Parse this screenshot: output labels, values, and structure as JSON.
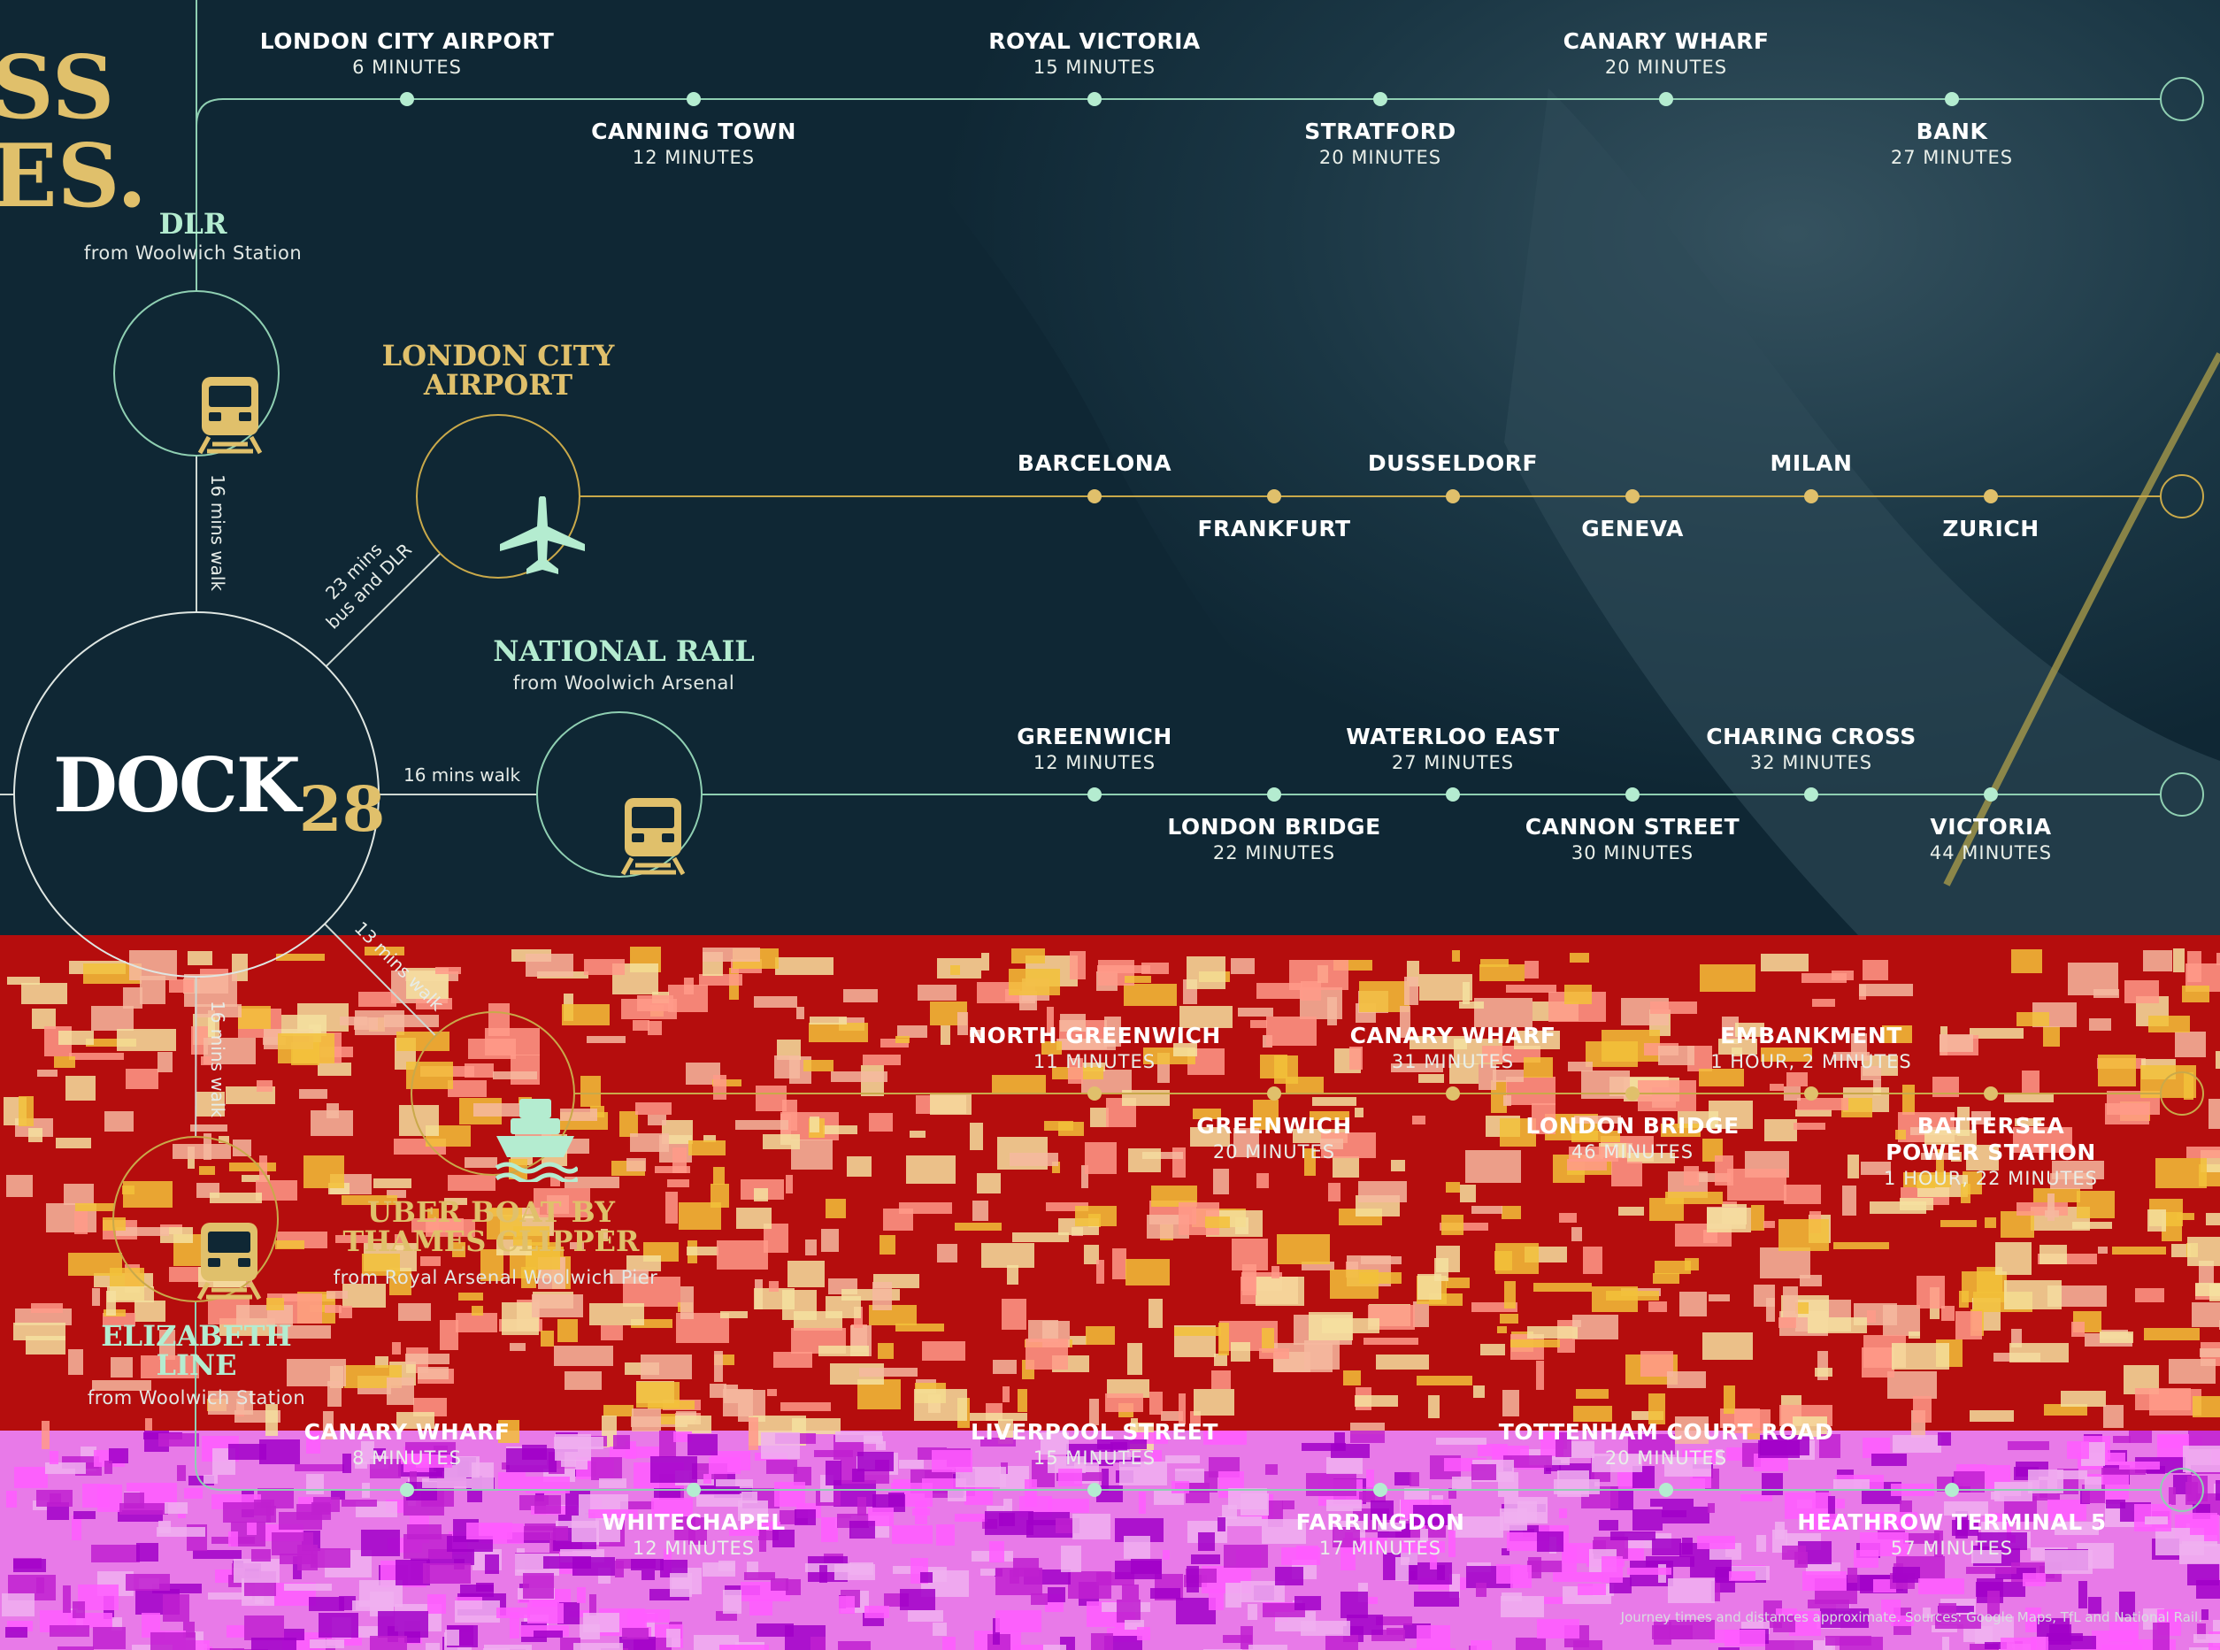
{
  "colors": {
    "background": "#0f2734",
    "mint": "#b4ecd0",
    "gold": "#e0c06b",
    "line_mint": "#8fcfb2",
    "line_gold": "#c9a94a",
    "band_red": "#b50d0d",
    "band_magenta": "#e87ae8"
  },
  "hero": {
    "line1": "SS",
    "line2": "ES."
  },
  "logo": {
    "wordmark": "DOCK",
    "number": "28"
  },
  "modes": {
    "dlr": {
      "title": "DLR",
      "subtitle": "from Woolwich Station",
      "icon": "train-icon"
    },
    "airport": {
      "title_line1": "LONDON CITY",
      "title_line2": "AIRPORT",
      "icon": "airplane-icon"
    },
    "rail": {
      "title": "NATIONAL RAIL",
      "subtitle": "from Woolwich Arsenal",
      "icon": "train-icon"
    },
    "uber": {
      "title_line1": "UBER BOAT BY",
      "title_line2": "THAMES CLIPPER",
      "subtitle": "from Royal Arsenal Woolwich Pier",
      "icon": "boat-icon"
    },
    "elizabeth": {
      "title_line1": "ELIZABETH",
      "title_line2": "LINE",
      "subtitle": "from Woolwich Station",
      "icon": "train-icon"
    }
  },
  "walks": {
    "dlr": "16 mins walk",
    "airport_line1": "23 mins",
    "airport_line2": "bus and DLR",
    "rail": "16 mins walk",
    "uber": "13 mins walk",
    "elizabeth": "16 mins walk"
  },
  "routes": {
    "dlr": [
      {
        "name": "LONDON CITY AIRPORT",
        "time": "6 MINUTES"
      },
      {
        "name": "CANNING TOWN",
        "time": "12 MINUTES"
      },
      {
        "name": "ROYAL VICTORIA",
        "time": "15 MINUTES"
      },
      {
        "name": "STRATFORD",
        "time": "20 MINUTES"
      },
      {
        "name": "CANARY WHARF",
        "time": "20 MINUTES"
      },
      {
        "name": "BANK",
        "time": "27 MINUTES"
      }
    ],
    "airport": [
      {
        "name": "BARCELONA"
      },
      {
        "name": "FRANKFURT"
      },
      {
        "name": "DUSSELDORF"
      },
      {
        "name": "GENEVA"
      },
      {
        "name": "MILAN"
      },
      {
        "name": "ZURICH"
      }
    ],
    "rail": [
      {
        "name": "GREENWICH",
        "time": "12 MINUTES"
      },
      {
        "name": "LONDON BRIDGE",
        "time": "22 MINUTES"
      },
      {
        "name": "WATERLOO EAST",
        "time": "27 MINUTES"
      },
      {
        "name": "CANNON STREET",
        "time": "30 MINUTES"
      },
      {
        "name": "CHARING CROSS",
        "time": "32 MINUTES"
      },
      {
        "name": "VICTORIA",
        "time": "44 MINUTES"
      }
    ],
    "uber": [
      {
        "name": "NORTH GREENWICH",
        "time": "11 MINUTES"
      },
      {
        "name": "GREENWICH",
        "time": "20 MINUTES"
      },
      {
        "name": "CANARY WHARF",
        "time": "31 MINUTES"
      },
      {
        "name": "LONDON BRIDGE",
        "time": "46 MINUTES"
      },
      {
        "name": "EMBANKMENT",
        "time": "1 HOUR, 2 MINUTES"
      },
      {
        "name": "BATTERSEA",
        "name2": "POWER STATION",
        "time": "1 HOUR, 22 MINUTES"
      }
    ],
    "elizabeth": [
      {
        "name": "CANARY WHARF",
        "time": "8 MINUTES"
      },
      {
        "name": "WHITECHAPEL",
        "time": "12 MINUTES"
      },
      {
        "name": "LIVERPOOL STREET",
        "time": "15 MINUTES"
      },
      {
        "name": "FARRINGDON",
        "time": "17 MINUTES"
      },
      {
        "name": "TOTTENHAM COURT ROAD",
        "time": "20 MINUTES"
      },
      {
        "name": "HEATHROW TERMINAL 5",
        "time": "57 MINUTES"
      }
    ]
  },
  "disclaimer": "Journey times and distances approximate. Sources: Google Maps, TfL and National Rail."
}
